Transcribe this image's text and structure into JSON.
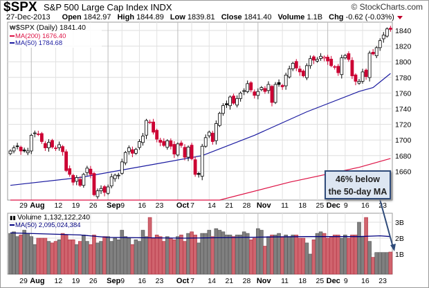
{
  "header": {
    "symbol": "$SPX",
    "name": "S&P 500 Large Cap Index",
    "exchange": "INDX",
    "copyright": "© StockCharts.com",
    "date": "27-Dec-2013",
    "open_label": "Open",
    "open": "1842.97",
    "high_label": "High",
    "high": "1844.89",
    "low_label": "Low",
    "low": "1839.81",
    "close_label": "Close",
    "close": "1841.40",
    "volume_label": "Volume",
    "volume": "1.1B",
    "chg_label": "Chg",
    "chg": "-0.62 (-0.03%)"
  },
  "legend": {
    "price": "$SPX (Daily) 1841.40",
    "ma200": "MA(200) 1676.40",
    "ma50": "MA(50) 1784.68",
    "volume": "Volume 1,132,122,240",
    "volume_ma": "MA(50) 2,095,024,384"
  },
  "callout": {
    "line1": "46% below",
    "line2": "the 50-day MA"
  },
  "colors": {
    "up": "#000000",
    "down": "#cc0033",
    "ma50": "#1a1aa0",
    "ma200": "#dd1144",
    "vol_up": "#808080",
    "vol_down": "#d0646e",
    "vol_ma": "#000080"
  },
  "chart_data": {
    "type": "candlestick",
    "price_axis": {
      "ticks": [
        1660,
        1680,
        1700,
        1720,
        1740,
        1760,
        1780,
        1800,
        1820,
        1840
      ],
      "range": [
        1640,
        1850
      ]
    },
    "volume_axis": {
      "ticks": [
        "1B",
        "2B",
        "3B"
      ],
      "tick_values": [
        1,
        2,
        3
      ],
      "range": [
        0,
        3.9
      ],
      "unit": "billions"
    },
    "x_labels": [
      {
        "i": 3,
        "t": "29",
        "bold": false
      },
      {
        "i": 6,
        "t": "Aug",
        "bold": true
      },
      {
        "i": 13,
        "t": "12",
        "bold": false
      },
      {
        "i": 18,
        "t": "19",
        "bold": false
      },
      {
        "i": 23,
        "t": "26",
        "bold": false
      },
      {
        "i": 28,
        "t": "Sep",
        "bold": true
      },
      {
        "i": 32,
        "t": "9",
        "bold": false
      },
      {
        "i": 37,
        "t": "16",
        "bold": false
      },
      {
        "i": 42,
        "t": "23",
        "bold": false
      },
      {
        "i": 48,
        "t": "Oct",
        "bold": true
      },
      {
        "i": 52,
        "t": "7",
        "bold": false
      },
      {
        "i": 57,
        "t": "14",
        "bold": false
      },
      {
        "i": 62,
        "t": "21",
        "bold": false
      },
      {
        "i": 67,
        "t": "28",
        "bold": false
      },
      {
        "i": 71,
        "t": "Nov",
        "bold": true
      },
      {
        "i": 78,
        "t": "11",
        "bold": false
      },
      {
        "i": 83,
        "t": "18",
        "bold": false
      },
      {
        "i": 88,
        "t": "25",
        "bold": false
      },
      {
        "i": 91,
        "t": "Dec",
        "bold": true
      },
      {
        "i": 96,
        "t": "9",
        "bold": false
      },
      {
        "i": 101,
        "t": "16",
        "bold": false
      },
      {
        "i": 106,
        "t": "23",
        "bold": false
      }
    ],
    "close": [
      1686,
      1690,
      1692,
      1686,
      1686,
      1686,
      1706,
      1709,
      1707,
      1698,
      1690,
      1697,
      1691,
      1689,
      1694,
      1685,
      1661,
      1656,
      1646,
      1652,
      1642,
      1656,
      1664,
      1656,
      1630,
      1635,
      1638,
      1633,
      1640,
      1653,
      1655,
      1655,
      1672,
      1684,
      1690,
      1683,
      1688,
      1698,
      1705,
      1725,
      1723,
      1710,
      1701,
      1697,
      1693,
      1699,
      1692,
      1682,
      1695,
      1693,
      1678,
      1691,
      1676,
      1656,
      1656,
      1692,
      1703,
      1710,
      1698,
      1721,
      1734,
      1744,
      1745,
      1755,
      1747,
      1753,
      1760,
      1763,
      1772,
      1764,
      1757,
      1762,
      1767,
      1762,
      1771,
      1748,
      1771,
      1771,
      1768,
      1783,
      1791,
      1798,
      1792,
      1787,
      1782,
      1795,
      1804,
      1802,
      1803,
      1807,
      1806,
      1801,
      1795,
      1793,
      1786,
      1805,
      1808,
      1803,
      1782,
      1775,
      1775,
      1787,
      1781,
      1811,
      1810,
      1818,
      1827,
      1834,
      1842,
      1841.4
    ],
    "volume": [
      2.3,
      2.4,
      2.1,
      2.2,
      2.5,
      2.3,
      2.1,
      1.6,
      2.0,
      2.0,
      2.0,
      1.8,
      1.7,
      1.8,
      1.9,
      2.3,
      2.2,
      1.9,
      1.9,
      1.6,
      1.8,
      2.2,
      1.8,
      1.6,
      2.2,
      1.7,
      1.8,
      2.1,
      2.1,
      1.8,
      2.0,
      1.9,
      2.5,
      2.1,
      2.0,
      1.6,
      1.9,
      1.8,
      2.5,
      2.1,
      3.3,
      2.0,
      2.2,
      2.1,
      1.8,
      2.1,
      2.0,
      1.9,
      2.1,
      2.2,
      1.8,
      2.3,
      2.4,
      2.2,
      1.7,
      2.3,
      2.3,
      2.5,
      2.1,
      2.6,
      2.5,
      2.4,
      2.2,
      2.2,
      2.1,
      2.2,
      2.2,
      2.4,
      2.3,
      1.9,
      2.0,
      2.6,
      2.5,
      1.5,
      2.1,
      2.2,
      2.2,
      2.3,
      2.1,
      2.2,
      2.1,
      2.2,
      2.2,
      2.0,
      2.0,
      1.7,
      1.0,
      1.9,
      2.3,
      2.4,
      2.3,
      2.0,
      2.1,
      2.2,
      2.2,
      2.0,
      2.2,
      2.0,
      2.2,
      2.2,
      3.0,
      2.1,
      3.3,
      1.8,
      0.8,
      1.1,
      1.1,
      1.1,
      1.1,
      1.13
    ],
    "ma50_points": [
      [
        0,
        1642
      ],
      [
        20,
        1652
      ],
      [
        40,
        1668
      ],
      [
        55,
        1680
      ],
      [
        70,
        1706
      ],
      [
        85,
        1736
      ],
      [
        100,
        1762
      ],
      [
        104,
        1767
      ],
      [
        109,
        1785
      ]
    ],
    "ma200_points": [
      [
        0,
        1585
      ],
      [
        60,
        1622
      ],
      [
        80,
        1646
      ],
      [
        100,
        1665
      ],
      [
        109,
        1676.4
      ]
    ],
    "volume_ma_points": [
      [
        0,
        2.33
      ],
      [
        20,
        2.2
      ],
      [
        28,
        2.05
      ],
      [
        50,
        2.0
      ],
      [
        70,
        2.06
      ],
      [
        85,
        2.1
      ],
      [
        100,
        2.1
      ],
      [
        106,
        2.15
      ],
      [
        109,
        2.1
      ]
    ]
  }
}
